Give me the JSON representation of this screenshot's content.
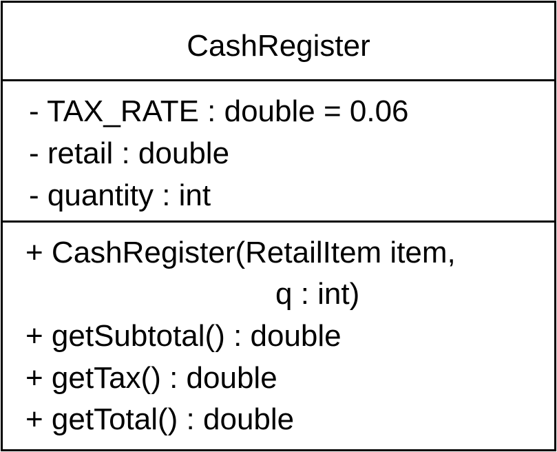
{
  "class_name": "CashRegister",
  "attributes": [
    "- TAX_RATE : double = 0.06",
    "- retail : double",
    "- quantity : int"
  ],
  "operations": {
    "constructor_line1": "+ CashRegister(RetailItem item,",
    "constructor_line2": "q : int)",
    "get_subtotal": "+ getSubtotal() : double",
    "get_tax": "+ getTax() : double",
    "get_total": "+ getTotal() : double"
  }
}
